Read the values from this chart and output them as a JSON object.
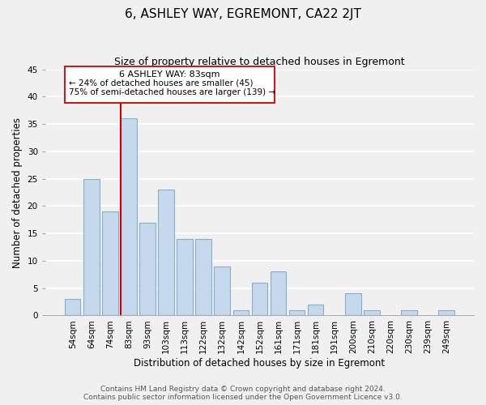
{
  "title": "6, ASHLEY WAY, EGREMONT, CA22 2JT",
  "subtitle": "Size of property relative to detached houses in Egremont",
  "xlabel": "Distribution of detached houses by size in Egremont",
  "ylabel": "Number of detached properties",
  "bar_labels": [
    "54sqm",
    "64sqm",
    "74sqm",
    "83sqm",
    "93sqm",
    "103sqm",
    "113sqm",
    "122sqm",
    "132sqm",
    "142sqm",
    "152sqm",
    "161sqm",
    "171sqm",
    "181sqm",
    "191sqm",
    "200sqm",
    "210sqm",
    "220sqm",
    "230sqm",
    "239sqm",
    "249sqm"
  ],
  "bar_values": [
    3,
    25,
    19,
    36,
    17,
    23,
    14,
    14,
    9,
    1,
    6,
    8,
    1,
    2,
    0,
    4,
    1,
    0,
    1,
    0,
    1
  ],
  "bar_color": "#c5d8ec",
  "bar_edge_color": "#85aecf",
  "vline_color": "#cc0000",
  "vline_x_index": 3,
  "ylim": [
    0,
    45
  ],
  "yticks": [
    0,
    5,
    10,
    15,
    20,
    25,
    30,
    35,
    40,
    45
  ],
  "annotation_line1": "6 ASHLEY WAY: 83sqm",
  "annotation_line2": "← 24% of detached houses are smaller (45)",
  "annotation_line3": "75% of semi-detached houses are larger (139) →",
  "footer_line1": "Contains HM Land Registry data © Crown copyright and database right 2024.",
  "footer_line2": "Contains public sector information licensed under the Open Government Licence v3.0.",
  "background_color": "#f0f0f0",
  "grid_color": "#ffffff",
  "title_fontsize": 11,
  "subtitle_fontsize": 9,
  "axis_label_fontsize": 8.5,
  "tick_fontsize": 7.5,
  "footer_fontsize": 6.5,
  "ann_fontsize": 8
}
